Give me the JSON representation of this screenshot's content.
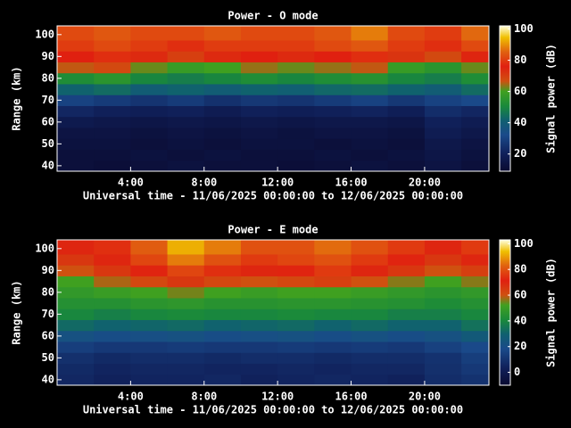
{
  "chart_data": [
    {
      "type": "heatmap",
      "title": "Power - O mode",
      "x_label": "Universal time - 11/06/2025 00:00:00 to 12/06/2025 00:00:00",
      "y_label": "Range (km)",
      "colorbar_label": "Signal power (dB)",
      "xlim": [
        0,
        23.5
      ],
      "xticks": [
        {
          "value": 4,
          "label": "4:00"
        },
        {
          "value": 8,
          "label": "8:00"
        },
        {
          "value": 12,
          "label": "12:00"
        },
        {
          "value": 16,
          "label": "16:00"
        },
        {
          "value": 20,
          "label": "20:00"
        }
      ],
      "ylim": [
        37.5,
        104
      ],
      "yticks": [
        40,
        50,
        60,
        70,
        80,
        90,
        100
      ],
      "clim": [
        9,
        102
      ],
      "cticks": [
        20,
        40,
        60,
        80,
        100
      ],
      "time_bins": [
        0,
        2,
        4,
        6,
        8,
        10,
        12,
        14,
        16,
        18,
        20,
        22,
        23.5
      ],
      "range_bins": [
        37.5,
        42.5,
        47.5,
        52.5,
        57.5,
        62.5,
        67.5,
        72.5,
        77.5,
        82.5,
        87.5,
        92.5,
        97.5,
        104
      ],
      "values": [
        [
          12,
          11,
          12,
          13,
          12,
          12,
          11,
          12,
          13,
          12,
          14,
          12
        ],
        [
          12,
          12,
          13,
          12,
          13,
          12,
          12,
          13,
          12,
          13,
          15,
          13
        ],
        [
          13,
          13,
          12,
          13,
          12,
          13,
          13,
          12,
          13,
          12,
          16,
          14
        ],
        [
          14,
          14,
          13,
          14,
          13,
          14,
          13,
          14,
          14,
          13,
          18,
          16
        ],
        [
          17,
          16,
          15,
          16,
          15,
          16,
          15,
          16,
          16,
          15,
          20,
          18
        ],
        [
          22,
          20,
          19,
          20,
          18,
          20,
          19,
          20,
          21,
          19,
          24,
          22
        ],
        [
          30,
          28,
          26,
          28,
          25,
          27,
          26,
          28,
          30,
          27,
          30,
          32
        ],
        [
          42,
          44,
          40,
          42,
          40,
          42,
          41,
          43,
          44,
          42,
          40,
          44
        ],
        [
          52,
          55,
          50,
          48,
          50,
          52,
          50,
          52,
          54,
          50,
          48,
          52
        ],
        [
          66,
          68,
          62,
          58,
          60,
          64,
          62,
          64,
          66,
          58,
          55,
          62
        ],
        [
          76,
          78,
          74,
          70,
          74,
          76,
          74,
          76,
          78,
          72,
          68,
          75
        ],
        [
          80,
          82,
          80,
          78,
          80,
          80,
          80,
          82,
          84,
          80,
          78,
          82
        ],
        [
          82,
          84,
          82,
          82,
          84,
          82,
          82,
          84,
          88,
          82,
          80,
          86
        ]
      ],
      "colormap": {
        "stops": [
          0,
          0.12,
          0.25,
          0.35,
          0.45,
          0.55,
          0.62,
          0.72,
          0.82,
          0.92,
          1
        ],
        "colors": [
          "#0a0a30",
          "#10205a",
          "#1a4a8a",
          "#106070",
          "#1a8a3a",
          "#40a020",
          "#d05010",
          "#e02010",
          "#e06010",
          "#f0c000",
          "#ffffe0"
        ]
      }
    },
    {
      "type": "heatmap",
      "title": "Power - E mode",
      "x_label": "Universal time - 11/06/2025 00:00:00 to 12/06/2025 00:00:00",
      "y_label": "Range (km)",
      "colorbar_label": "Signal power (dB)",
      "xlim": [
        0,
        23.5
      ],
      "xticks": [
        {
          "value": 4,
          "label": "4:00"
        },
        {
          "value": 8,
          "label": "8:00"
        },
        {
          "value": 12,
          "label": "12:00"
        },
        {
          "value": 16,
          "label": "16:00"
        },
        {
          "value": 20,
          "label": "20:00"
        }
      ],
      "ylim": [
        37.5,
        104
      ],
      "yticks": [
        40,
        50,
        60,
        70,
        80,
        90,
        100
      ],
      "clim": [
        -10,
        103
      ],
      "cticks": [
        0,
        20,
        40,
        60,
        80,
        100
      ],
      "time_bins": [
        0,
        2,
        4,
        6,
        8,
        10,
        12,
        14,
        16,
        18,
        20,
        22,
        23.5
      ],
      "range_bins": [
        37.5,
        42.5,
        47.5,
        52.5,
        57.5,
        62.5,
        67.5,
        72.5,
        77.5,
        82.5,
        87.5,
        92.5,
        97.5,
        104
      ],
      "values": [
        [
          6,
          4,
          5,
          5,
          6,
          4,
          5,
          6,
          5,
          4,
          8,
          10
        ],
        [
          7,
          5,
          6,
          6,
          5,
          5,
          6,
          5,
          6,
          6,
          9,
          12
        ],
        [
          9,
          7,
          8,
          8,
          7,
          8,
          8,
          7,
          8,
          8,
          10,
          14
        ],
        [
          14,
          12,
          12,
          13,
          12,
          12,
          13,
          12,
          13,
          12,
          15,
          18
        ],
        [
          22,
          20,
          21,
          22,
          20,
          21,
          22,
          20,
          22,
          20,
          22,
          26
        ],
        [
          32,
          30,
          31,
          32,
          30,
          31,
          32,
          30,
          32,
          30,
          30,
          34
        ],
        [
          40,
          38,
          40,
          41,
          40,
          40,
          41,
          40,
          40,
          38,
          38,
          40
        ],
        [
          44,
          44,
          46,
          47,
          45,
          45,
          46,
          46,
          45,
          44,
          42,
          44
        ],
        [
          48,
          50,
          52,
          55,
          52,
          50,
          52,
          52,
          50,
          48,
          46,
          48
        ],
        [
          52,
          58,
          62,
          66,
          62,
          60,
          62,
          64,
          60,
          56,
          52,
          56
        ],
        [
          60,
          66,
          72,
          78,
          74,
          70,
          72,
          76,
          70,
          66,
          60,
          64
        ],
        [
          66,
          70,
          78,
          86,
          80,
          76,
          78,
          80,
          76,
          72,
          66,
          70
        ],
        [
          70,
          74,
          82,
          92,
          86,
          80,
          80,
          84,
          80,
          76,
          70,
          76
        ]
      ],
      "colormap": {
        "stops": [
          0,
          0.12,
          0.25,
          0.35,
          0.45,
          0.55,
          0.62,
          0.72,
          0.82,
          0.92,
          1
        ],
        "colors": [
          "#0a0a30",
          "#10205a",
          "#1a4a8a",
          "#106070",
          "#1a8a3a",
          "#40a020",
          "#d05010",
          "#e02010",
          "#e06010",
          "#f0c000",
          "#ffffe0"
        ]
      }
    }
  ]
}
